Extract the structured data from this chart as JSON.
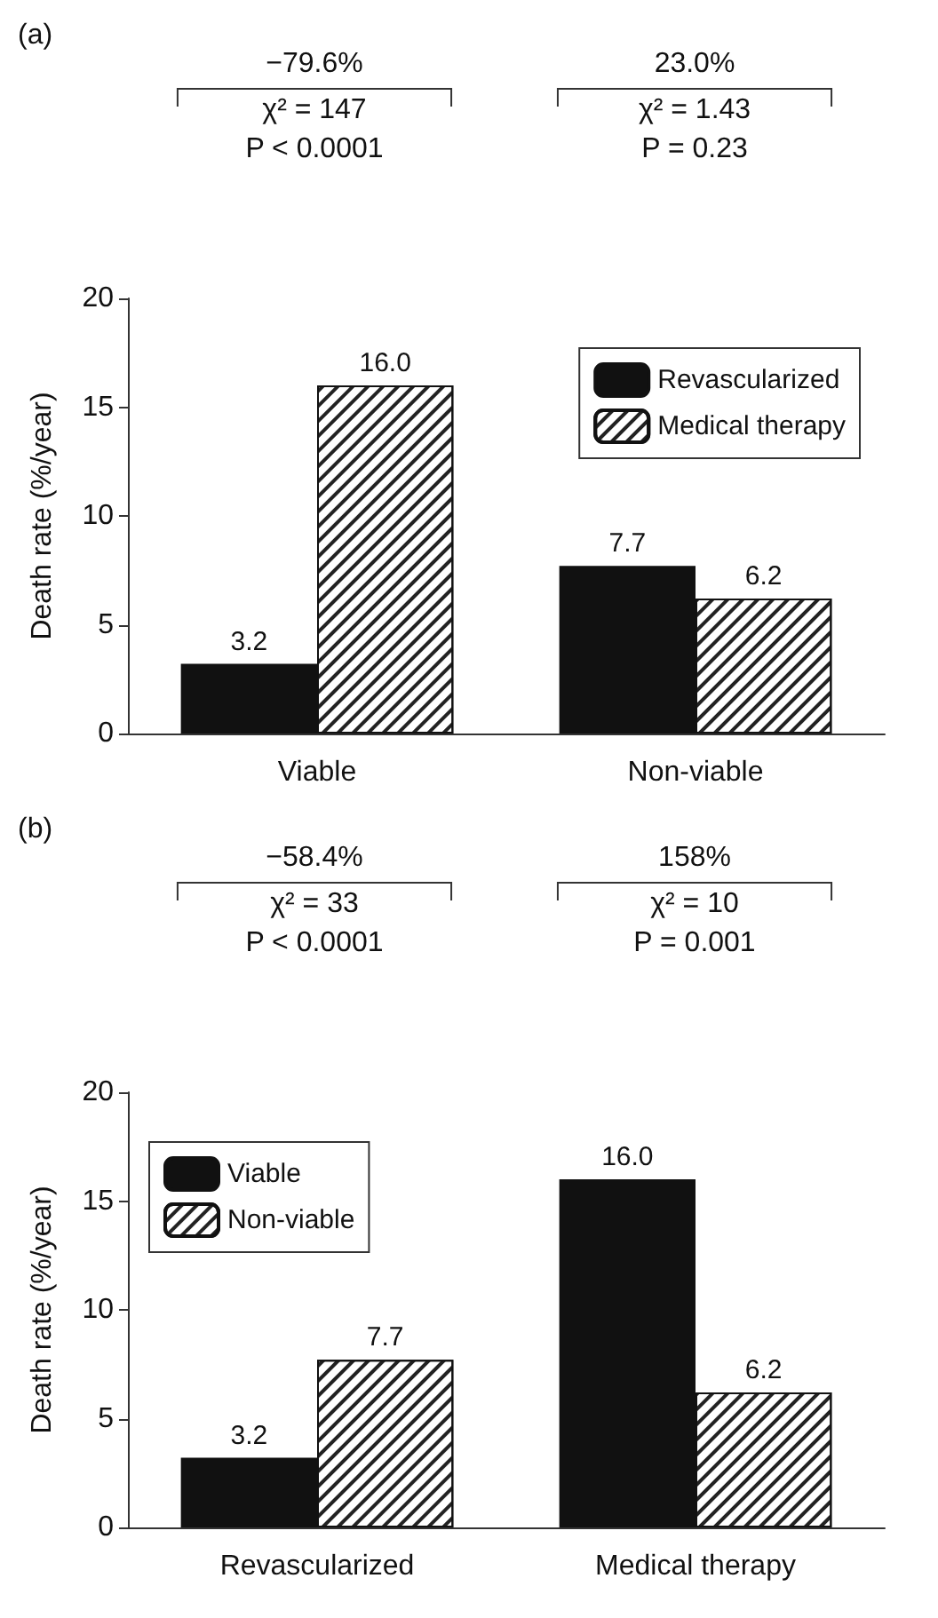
{
  "chart_data": [
    {
      "type": "bar",
      "categories": [
        "Viable",
        "Non-viable"
      ],
      "ylabel": "Death rate (%/year)",
      "ylim": [
        0,
        20
      ],
      "yticks": [
        0,
        5,
        10,
        15,
        20
      ],
      "grid": false,
      "legend": "top right",
      "series": [
        {
          "name": "Revascularized",
          "color": "#111111",
          "values": [
            3.2,
            7.7
          ],
          "value_labels": [
            "3.2",
            "7.7"
          ]
        },
        {
          "name": "Medical therapy",
          "color": "#ffffff",
          "values": [
            16.0,
            6.2
          ],
          "value_labels": [
            "16.0",
            "6.2"
          ]
        }
      ],
      "annotations": [
        "(a)",
        "−79.6%",
        "χ² = 147",
        "P < 0.0001",
        "23.0%",
        "χ² = 1.43",
        "P = 0.23"
      ]
    },
    {
      "type": "bar",
      "categories": [
        "Revascularized",
        "Medical therapy"
      ],
      "ylabel": "Death rate (%/year)",
      "ylim": [
        0,
        20
      ],
      "yticks": [
        0,
        5,
        10,
        15,
        20
      ],
      "grid": false,
      "legend": "top left",
      "series": [
        {
          "name": "Viable",
          "color": "#111111",
          "values": [
            3.2,
            16.0
          ],
          "value_labels": [
            "3.2",
            "16.0"
          ]
        },
        {
          "name": "Non-viable",
          "color": "#ffffff",
          "values": [
            7.7,
            6.2
          ],
          "value_labels": [
            "7.7",
            "6.2"
          ]
        }
      ],
      "annotations": [
        "(b)",
        "−58.4%",
        "χ² = 33",
        "P < 0.0001",
        "158%",
        "χ² = 10",
        "P = 0.001"
      ]
    }
  ]
}
